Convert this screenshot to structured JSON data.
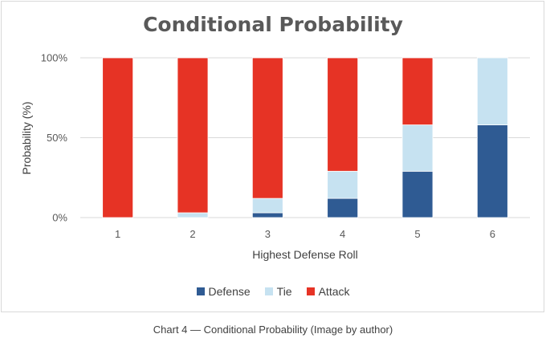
{
  "chart_data": {
    "type": "bar",
    "stacked": true,
    "title": "Conditional Probability",
    "xlabel": "Highest Defense Roll",
    "ylabel": "Probability (%)",
    "categories": [
      "1",
      "2",
      "3",
      "4",
      "5",
      "6"
    ],
    "ylim": [
      0,
      100
    ],
    "yticks": [
      "0%",
      "50%",
      "100%"
    ],
    "ytick_values": [
      0,
      50,
      100
    ],
    "grid": true,
    "legend_position": "bottom",
    "series": [
      {
        "name": "Defense",
        "color": "#2f5b93",
        "values": [
          0,
          0,
          3,
          12,
          29,
          58
        ]
      },
      {
        "name": "Tie",
        "color": "#c6e2f1",
        "values": [
          0,
          3,
          9,
          17,
          29,
          42
        ]
      },
      {
        "name": "Attack",
        "color": "#e63325",
        "values": [
          100,
          97,
          88,
          71,
          42,
          0
        ]
      }
    ]
  },
  "caption": "Chart 4 — Conditional Probability (Image by author)"
}
